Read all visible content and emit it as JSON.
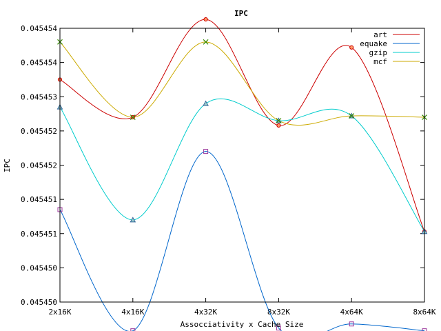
{
  "chart_data": {
    "type": "line",
    "title": "IPC",
    "xlabel": "Assocciativity x Cache Size",
    "ylabel": "IPC",
    "categories": [
      "2x16K",
      "4x16K",
      "4x32K",
      "8x32K",
      "4x64K",
      "8x64K"
    ],
    "y_tick_labels": [
      "0.045454",
      "0.045454",
      "0.045453",
      "0.045452",
      "0.045452",
      "0.045451",
      "0.045451",
      "0.045450",
      "0.045450"
    ],
    "ylim": [
      0.04545,
      0.045454
    ],
    "grid": false,
    "legend_position": "top-right",
    "series": [
      {
        "name": "art",
        "color": "#cc0000",
        "marker": "circle",
        "values": [
          0.04545325,
          0.0454527,
          0.04545413,
          0.04545258,
          0.04545372,
          0.04545103
        ]
      },
      {
        "name": "equake",
        "color": "#0066cc",
        "marker": "square",
        "values": [
          0.04545135,
          0.04544958,
          0.0454522,
          0.04544962,
          0.04544968,
          0.04544958
        ]
      },
      {
        "name": "gzip",
        "color": "#00cccc",
        "marker": "triangle",
        "values": [
          0.04545285,
          0.0454512,
          0.0454529,
          0.04545265,
          0.04545272,
          0.04545103
        ]
      },
      {
        "name": "mcf",
        "color": "#ccaa00",
        "marker": "x",
        "values": [
          0.0454538,
          0.0454527,
          0.0454538,
          0.04545265,
          0.04545272,
          0.0454527
        ]
      }
    ]
  }
}
